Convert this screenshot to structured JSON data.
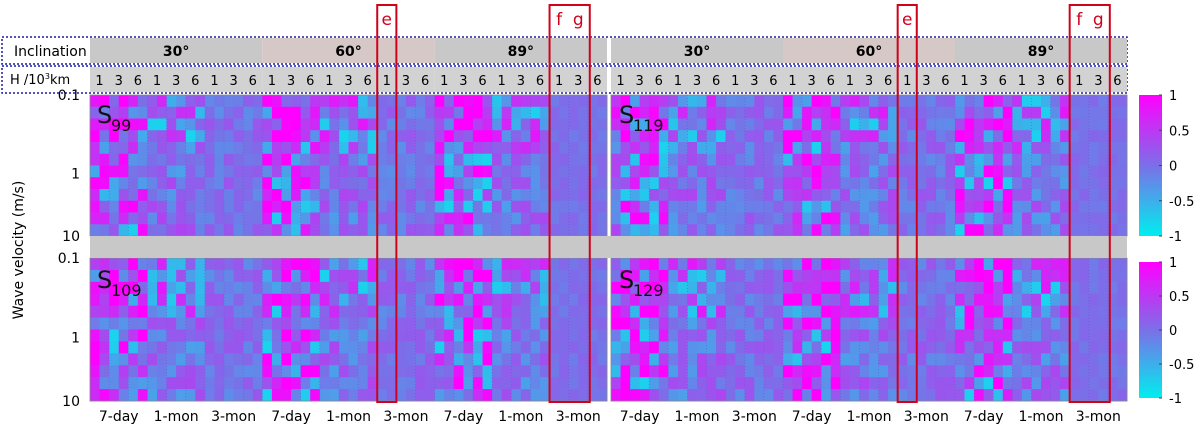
{
  "header": {
    "inclination_label": "Inclination",
    "altitude_label_prefix": "H /10",
    "altitude_label_sup": "3",
    "altitude_label_suffix": "km",
    "inclinations": [
      "30°",
      "60°",
      "89°"
    ],
    "altitudes": [
      "1",
      "3",
      "6"
    ],
    "durations": [
      "7-day",
      "1-mon",
      "3-mon"
    ]
  },
  "highlights": [
    {
      "panel_column": "left",
      "inclination": "60°",
      "altitude": "1",
      "label": "e"
    },
    {
      "panel_column": "left",
      "inclination": "89°",
      "altitudes": [
        "1",
        "3"
      ],
      "labels": [
        "f",
        "g"
      ]
    },
    {
      "panel_column": "right",
      "inclination": "60°",
      "altitude": "1",
      "label": "e"
    },
    {
      "panel_column": "right",
      "inclination": "89°",
      "altitudes": [
        "1",
        "3"
      ],
      "labels": [
        "f",
        "g"
      ]
    }
  ],
  "colors": {
    "high": "#ff00ff",
    "mid": "#7b6fe8",
    "low": "#00eeee",
    "header_band": "#c8c8c8",
    "highlight": "#d0021b",
    "header_border": "#1a1aa0"
  },
  "chart_data": {
    "type": "heatmap",
    "ylabel": "Wave velocity (m/s)",
    "y_scale": "log",
    "ylim": [
      0.1,
      10
    ],
    "y_ticks": [
      "0.1",
      "1",
      "10"
    ],
    "colorbar": {
      "min": -1,
      "max": 1,
      "ticks": [
        "1",
        "0.5",
        "0",
        "-0.5",
        "-1"
      ]
    },
    "panels": [
      {
        "label": "S",
        "subscript": "99",
        "position": "top-left"
      },
      {
        "label": "S",
        "subscript": "119",
        "position": "top-right"
      },
      {
        "label": "S",
        "subscript": "109",
        "position": "bottom-left"
      },
      {
        "label": "S",
        "subscript": "129",
        "position": "bottom-right"
      }
    ]
  }
}
